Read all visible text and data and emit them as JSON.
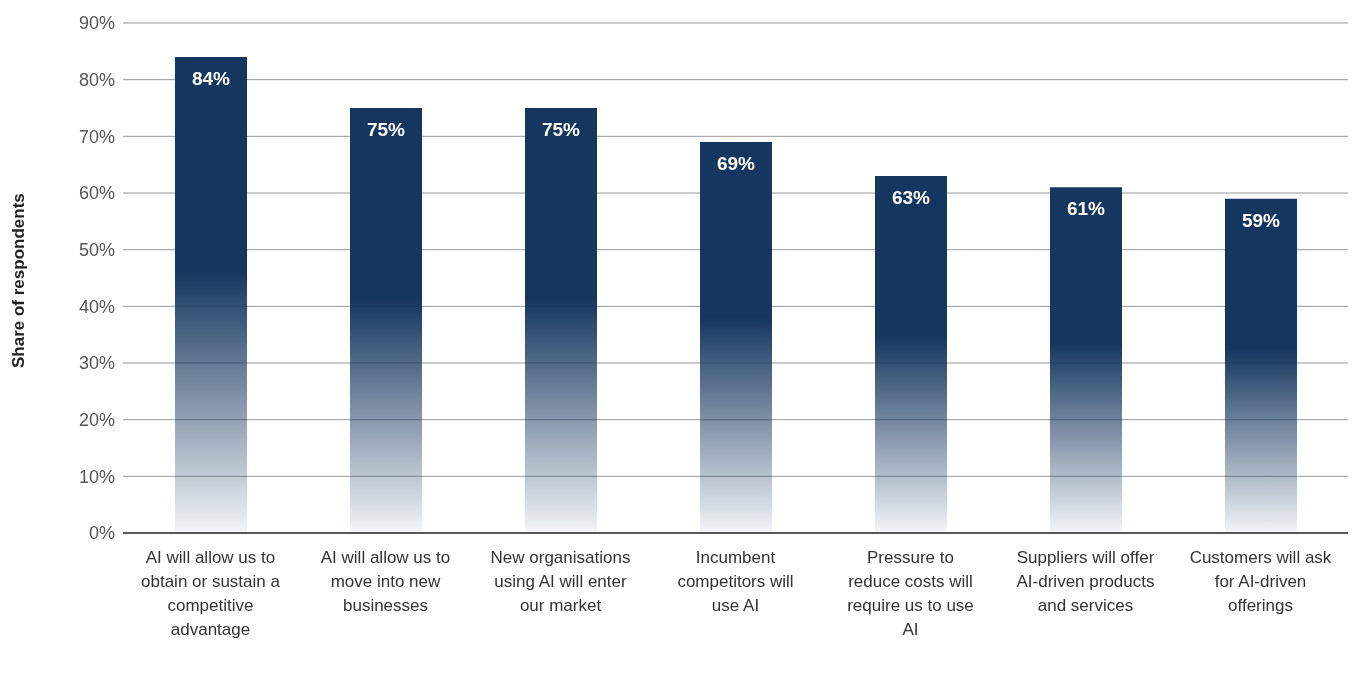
{
  "chart_data": {
    "type": "bar",
    "ylabel": "Share of respondents",
    "categories": [
      "AI will allow us to obtain or sustain a competitive advantage",
      "AI will allow us to move into new businesses",
      "New organisations using AI will enter our market",
      "Incumbent competitors will use AI",
      "Pressure to reduce costs will require us to use AI",
      "Suppliers will offer AI-driven products and services",
      "Customers will ask for AI-driven offerings"
    ],
    "values": [
      84,
      75,
      75,
      69,
      63,
      61,
      59
    ],
    "value_labels": [
      "84%",
      "75%",
      "75%",
      "69%",
      "63%",
      "61%",
      "59%"
    ],
    "color": "#15365f",
    "ylim": [
      0,
      90
    ],
    "yticks": [
      {
        "value": 0,
        "label": "0%"
      },
      {
        "value": 10,
        "label": "10%"
      },
      {
        "value": 20,
        "label": "20%"
      },
      {
        "value": 30,
        "label": "30%"
      },
      {
        "value": 40,
        "label": "40%"
      },
      {
        "value": 50,
        "label": "50%"
      },
      {
        "value": 60,
        "label": "60%"
      },
      {
        "value": 70,
        "label": "70%"
      },
      {
        "value": 80,
        "label": "80%"
      },
      {
        "value": 90,
        "label": "90%"
      }
    ],
    "grid": "y",
    "legend": false
  }
}
